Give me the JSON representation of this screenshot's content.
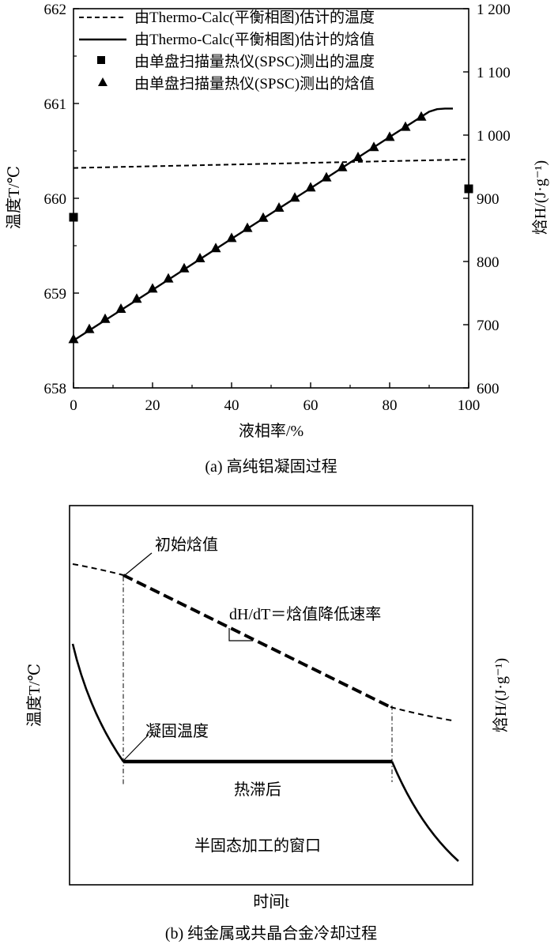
{
  "chart_data": [
    {
      "type": "line",
      "title": "(a) 高纯铝凝固过程",
      "xlabel": "液相率/%",
      "ylabel_left": "温度T/℃",
      "ylabel_right": "焓H/(J·g⁻¹)",
      "xlim": [
        0,
        100
      ],
      "ylim_left": [
        658,
        662
      ],
      "ylim_right": [
        600,
        1200
      ],
      "x_ticks": [
        "0",
        "20",
        "40",
        "60",
        "80",
        "100"
      ],
      "y_left_ticks": [
        "658",
        "659",
        "660",
        "661",
        "662"
      ],
      "y_right_ticks": [
        "600",
        "700",
        "800",
        "900",
        "1 000",
        "1 100",
        "1 200"
      ],
      "legend": [
        "由Thermo-Calc(平衡相图)估计的温度",
        "由Thermo-Calc(平衡相图)估计的焓值",
        "由单盘扫描量热仪(SPSC)测出的温度",
        "由单盘扫描量热仪(SPSC)测出的焓值"
      ],
      "series": [
        {
          "name": "由Thermo-Calc(平衡相图)估计的温度",
          "axis": "left",
          "style": "dashed",
          "x": [
            0,
            100
          ],
          "y": [
            660.32,
            660.41
          ]
        },
        {
          "name": "由Thermo-Calc(平衡相图)估计的焓值",
          "axis": "right",
          "style": "solid",
          "x": [
            0,
            20,
            40,
            60,
            80,
            90,
            92,
            94,
            96
          ],
          "y": [
            675,
            755,
            836,
            916,
            997,
            1037,
            1041,
            1042,
            1042
          ]
        },
        {
          "name": "由单盘扫描量热仪(SPSC)测出的温度",
          "axis": "left",
          "style": "square",
          "x": [
            0,
            100
          ],
          "y": [
            659.8,
            660.1
          ]
        },
        {
          "name": "由单盘扫描量热仪(SPSC)测出的焓值",
          "axis": "right",
          "style": "triangle",
          "x": [
            0,
            4,
            8,
            12,
            16,
            20,
            24,
            28,
            32,
            36,
            40,
            44,
            48,
            52,
            56,
            60,
            64,
            68,
            72,
            76,
            80,
            84,
            88
          ],
          "y": [
            677,
            693,
            709,
            725,
            741,
            757,
            773,
            789,
            805,
            821,
            837,
            853,
            869,
            885,
            901,
            917,
            933,
            949,
            965,
            981,
            997,
            1013,
            1029
          ]
        }
      ]
    },
    {
      "type": "line",
      "title": "(b) 纯金属或共晶合金冷却过程",
      "xlabel": "时间t",
      "ylabel_left": "温度T/℃",
      "ylabel_right": "焓H/(J·g⁻¹)",
      "annotations": {
        "initial_enthalpy": "初始焓值",
        "enthalpy_rate": "dH/dT＝焓值降低速率",
        "solidification_temperature": "凝固温度",
        "thermal_arrest": "热滞后",
        "semi_solid_window": "半固态加工的窗口"
      },
      "series": [
        {
          "name": "焓值",
          "style": "dashed",
          "x": [
            0,
            1,
            6.2,
            7.2
          ],
          "y": [
            0.7,
            0.66,
            0.18,
            0.13
          ]
        },
        {
          "name": "温度",
          "style": "solid",
          "x": [
            0,
            1,
            6.2,
            7.2
          ],
          "y": [
            0.53,
            -0.2,
            -0.2,
            -0.6
          ]
        }
      ]
    }
  ]
}
